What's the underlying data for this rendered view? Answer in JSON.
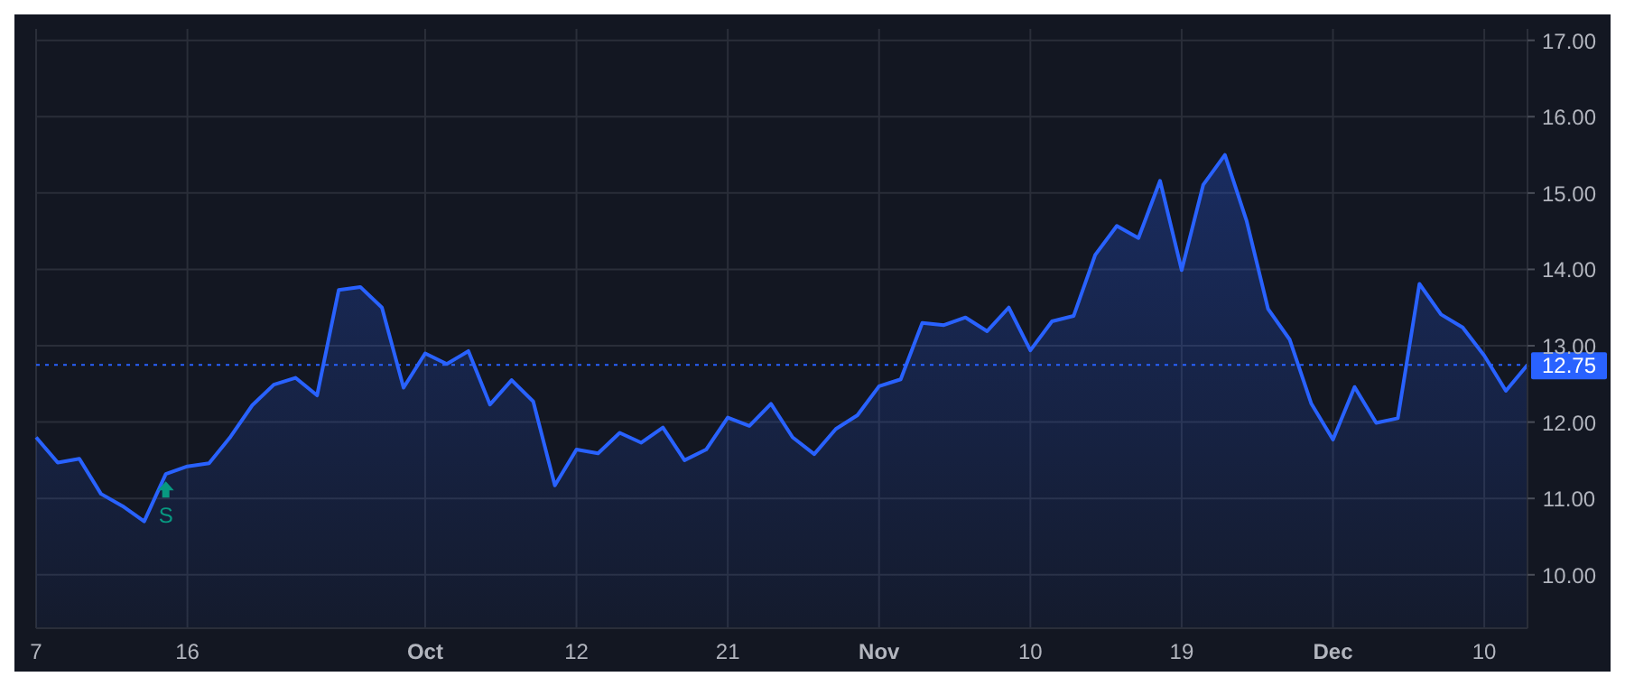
{
  "chart_data": {
    "type": "area",
    "categories": [
      "7",
      null,
      null,
      null,
      null,
      null,
      null,
      "16",
      null,
      null,
      null,
      null,
      null,
      null,
      null,
      null,
      null,
      null,
      "Oct",
      null,
      null,
      null,
      null,
      null,
      null,
      "12",
      null,
      null,
      null,
      null,
      null,
      null,
      "21",
      null,
      null,
      null,
      null,
      null,
      null,
      "Nov",
      null,
      null,
      null,
      null,
      null,
      null,
      "10",
      null,
      null,
      null,
      null,
      null,
      null,
      "19",
      null,
      null,
      null,
      null,
      null,
      null,
      "Dec",
      null,
      null,
      null,
      null,
      null,
      null,
      "10",
      null,
      null
    ],
    "series": [
      {
        "color": "#2962ff",
        "values": [
          11.8,
          11.47,
          11.52,
          11.06,
          10.9,
          10.7,
          11.32,
          11.42,
          11.46,
          11.81,
          12.22,
          12.49,
          12.58,
          12.35,
          13.73,
          13.77,
          13.5,
          12.45,
          12.9,
          12.76,
          12.93,
          12.23,
          12.55,
          12.27,
          11.17,
          11.64,
          11.59,
          11.86,
          11.73,
          11.93,
          11.5,
          11.64,
          12.06,
          11.95,
          12.24,
          11.8,
          11.58,
          11.91,
          12.09,
          12.47,
          12.56,
          13.3,
          13.27,
          13.37,
          13.19,
          13.5,
          12.94,
          13.32,
          13.39,
          14.19,
          14.57,
          14.41,
          15.16,
          13.99,
          15.11,
          15.5,
          14.64,
          13.48,
          13.08,
          12.24,
          11.77,
          12.46,
          11.99,
          12.05,
          13.81,
          13.41,
          13.24,
          12.87,
          12.41,
          12.75
        ]
      }
    ],
    "ylim": [
      9.3,
      17.15
    ],
    "yticks": [
      {
        "value": 10,
        "label": "10.00"
      },
      {
        "value": 11,
        "label": "11.00"
      },
      {
        "value": 12,
        "label": "12.00"
      },
      {
        "value": 13,
        "label": "13.00"
      },
      {
        "value": 14,
        "label": "14.00"
      },
      {
        "value": 15,
        "label": "15.00"
      },
      {
        "value": 16,
        "label": "16.00"
      },
      {
        "value": 17,
        "label": "17.00"
      }
    ],
    "grid": true,
    "ref_lines": [
      {
        "axis": "y",
        "value": 12.75,
        "label": "12.75",
        "color": "#2962ff",
        "line_style": "dotted"
      }
    ],
    "annotations": [
      {
        "text": "S",
        "y": 11.32
      }
    ]
  }
}
